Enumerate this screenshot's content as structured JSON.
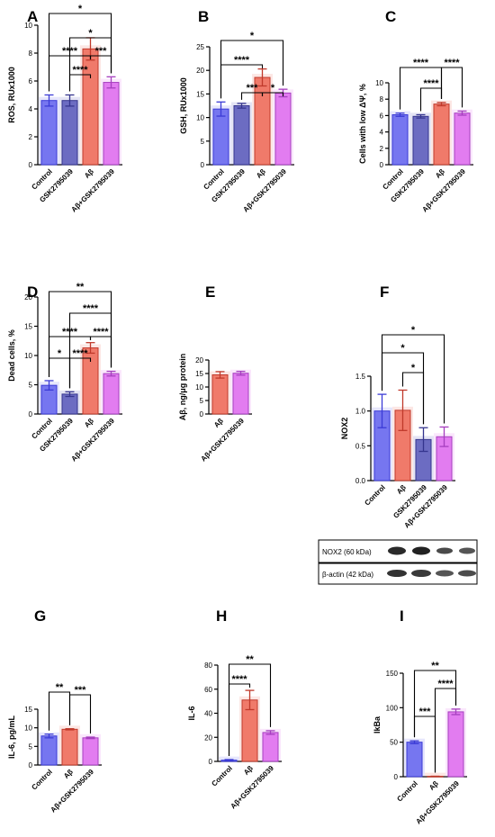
{
  "colors": {
    "blue": "#7676f0",
    "blue_edge": "#3b3bd6",
    "slate": "#6c6cc2",
    "slate_edge": "#35358e",
    "red": "#f07a6a",
    "red_edge": "#c0392b",
    "pink": "#e27cf0",
    "pink_edge": "#a63fbf"
  },
  "blot": {
    "rows": [
      "NOX2 (60 kDa)",
      "β-actin (42 kDa)"
    ]
  },
  "chart_data": [
    {
      "type": "bar",
      "letter": "A",
      "ylabel": "ROS, RUx1000",
      "categories": [
        "Control",
        "GSK2795039",
        "Aβ",
        "Aβ+GSK2795039"
      ],
      "values": [
        4.6,
        4.6,
        8.3,
        5.9
      ],
      "errors": [
        0.4,
        0.4,
        0.8,
        0.4
      ],
      "colors": [
        "blue",
        "slate",
        "red",
        "pink"
      ],
      "ylim": [
        0,
        10
      ],
      "yticks": [
        0,
        2,
        4,
        6,
        8,
        10
      ],
      "significance": [
        {
          "from": 0,
          "to": 3,
          "label": "*"
        },
        {
          "from": 1,
          "to": 3,
          "label": "*"
        },
        {
          "from": 0,
          "to": 2,
          "label": "****"
        },
        {
          "from": 2,
          "to": 3,
          "label": "***"
        },
        {
          "from": 1,
          "to": 2,
          "label": "****"
        }
      ]
    },
    {
      "type": "bar",
      "letter": "B",
      "ylabel": "GSH, RUx1000",
      "categories": [
        "Control",
        "GSK2795039",
        "Aβ",
        "Aβ+GSK2795039"
      ],
      "values": [
        11.8,
        12.5,
        18.5,
        15.2
      ],
      "errors": [
        1.5,
        0.5,
        1.8,
        0.8
      ],
      "colors": [
        "blue",
        "slate",
        "red",
        "pink"
      ],
      "ylim": [
        0,
        25
      ],
      "yticks": [
        0,
        5,
        10,
        15,
        20,
        25
      ],
      "significance": [
        {
          "from": 0,
          "to": 3,
          "label": "*"
        },
        {
          "from": 0,
          "to": 2,
          "label": "****"
        },
        {
          "from": 1,
          "to": 2,
          "label": "***"
        },
        {
          "from": 2,
          "to": 3,
          "label": "*"
        }
      ]
    },
    {
      "type": "bar",
      "letter": "C",
      "ylabel": "Cells with low ΔΨ, %",
      "categories": [
        "Control",
        "GSK2795039",
        "Aβ",
        "Aβ+GSK2795039"
      ],
      "values": [
        6.1,
        5.9,
        7.4,
        6.3
      ],
      "errors": [
        0.2,
        0.2,
        0.2,
        0.25
      ],
      "colors": [
        "blue",
        "slate",
        "red",
        "pink"
      ],
      "ylim": [
        0,
        10
      ],
      "yticks": [
        0,
        2,
        4,
        6,
        8,
        10
      ],
      "significance": [
        {
          "from": 0,
          "to": 2,
          "label": "****"
        },
        {
          "from": 2,
          "to": 3,
          "label": "****"
        },
        {
          "from": 1,
          "to": 2,
          "label": "****"
        }
      ]
    },
    {
      "type": "bar",
      "letter": "D",
      "ylabel": "Dead cells, %",
      "categories": [
        "Control",
        "GSK2795039",
        "Aβ",
        "Aβ+GSK2795039"
      ],
      "values": [
        4.9,
        3.4,
        11.3,
        6.9
      ],
      "errors": [
        0.8,
        0.4,
        0.9,
        0.4
      ],
      "colors": [
        "blue",
        "slate",
        "red",
        "pink"
      ],
      "ylim": [
        0,
        20
      ],
      "yticks": [
        0,
        5,
        10,
        15,
        20
      ],
      "significance": [
        {
          "from": 0,
          "to": 3,
          "label": "**"
        },
        {
          "from": 1,
          "to": 3,
          "label": "****"
        },
        {
          "from": 0,
          "to": 2,
          "label": "****"
        },
        {
          "from": 2,
          "to": 3,
          "label": "****"
        },
        {
          "from": 0,
          "to": 1,
          "label": "*"
        },
        {
          "from": 1,
          "to": 2,
          "label": "****"
        }
      ]
    },
    {
      "type": "bar",
      "letter": "E",
      "ylabel": "Aβ, ng/μg protein",
      "categories": [
        "Aβ",
        "Aβ+GSK2795039"
      ],
      "values": [
        14.5,
        15.1
      ],
      "errors": [
        1.2,
        0.7
      ],
      "colors": [
        "red",
        "pink"
      ],
      "ylim": [
        0,
        20
      ],
      "yticks": [
        0,
        5,
        10,
        15,
        20
      ],
      "significance": []
    },
    {
      "type": "bar",
      "letter": "F",
      "ylabel": "NOX2",
      "categories": [
        "Control",
        "Aβ",
        "GSK2795039",
        "Aβ+GSK2795039"
      ],
      "values": [
        1.0,
        1.01,
        0.59,
        0.63
      ],
      "errors": [
        0.24,
        0.29,
        0.17,
        0.14
      ],
      "colors": [
        "blue",
        "red",
        "slate",
        "pink"
      ],
      "ylim": [
        0,
        1.5
      ],
      "yticks": [
        0.0,
        0.5,
        1.0,
        1.5
      ],
      "significance": [
        {
          "from": 0,
          "to": 3,
          "label": "*"
        },
        {
          "from": 0,
          "to": 2,
          "label": "*"
        },
        {
          "from": 1,
          "to": 2,
          "label": "*"
        }
      ]
    },
    {
      "type": "bar",
      "letter": "G",
      "ylabel": "IL-6, pg/mL",
      "categories": [
        "Control",
        "Aβ",
        "Aβ+GSK2795039"
      ],
      "values": [
        7.8,
        9.6,
        7.3
      ],
      "errors": [
        0.5,
        0.15,
        0.2
      ],
      "colors": [
        "blue",
        "red",
        "pink"
      ],
      "ylim": [
        0,
        15
      ],
      "yticks": [
        0,
        5,
        10,
        15
      ],
      "significance": [
        {
          "from": 0,
          "to": 1,
          "label": "**"
        },
        {
          "from": 1,
          "to": 2,
          "label": "***"
        }
      ]
    },
    {
      "type": "bar",
      "letter": "H",
      "ylabel": "IL-6",
      "categories": [
        "Control",
        "Aβ",
        "Aβ+GSK2795039"
      ],
      "values": [
        1.0,
        51.0,
        24.0
      ],
      "errors": [
        0.5,
        8.0,
        1.5
      ],
      "colors": [
        "blue",
        "red",
        "pink"
      ],
      "ylim": [
        0,
        80
      ],
      "yticks": [
        0,
        20,
        40,
        60,
        80
      ],
      "significance": [
        {
          "from": 0,
          "to": 2,
          "label": "**"
        },
        {
          "from": 0,
          "to": 1,
          "label": "****"
        }
      ]
    },
    {
      "type": "bar",
      "letter": "I",
      "ylabel": "IkBa",
      "categories": [
        "Control",
        "Aβ",
        "Aβ+GSK2795039"
      ],
      "values": [
        50.0,
        0.5,
        94.0
      ],
      "errors": [
        2.0,
        0.2,
        4.0
      ],
      "colors": [
        "blue",
        "red",
        "pink"
      ],
      "ylim": [
        0,
        150
      ],
      "yticks": [
        0,
        50,
        100,
        150
      ],
      "significance": [
        {
          "from": 0,
          "to": 2,
          "label": "**"
        },
        {
          "from": 1,
          "to": 2,
          "label": "****"
        },
        {
          "from": 0,
          "to": 1,
          "label": "***"
        }
      ]
    }
  ]
}
